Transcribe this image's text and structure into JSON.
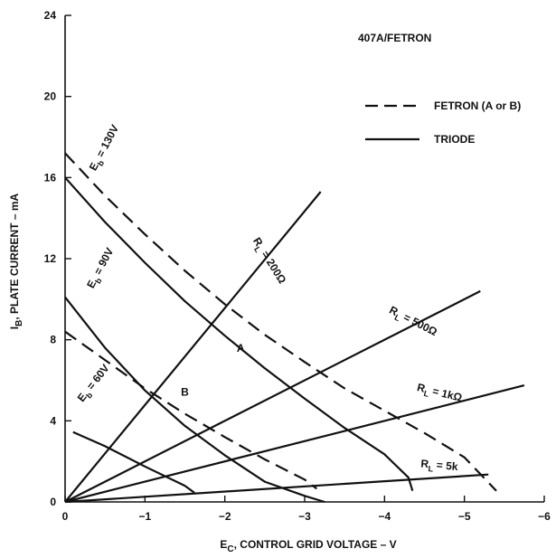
{
  "chart_data": {
    "type": "line",
    "title": "407A/FETRON",
    "xlabel_parts": {
      "main": "E",
      "sub": "C",
      "rest": ", CONTROL GRID VOLTAGE – V"
    },
    "ylabel_parts": {
      "main": "I",
      "sub": "B",
      "rest": ", PLATE CURRENT – mA"
    },
    "xlim": [
      0,
      -6
    ],
    "ylim": [
      0,
      24
    ],
    "x_ticks": [
      {
        "value": 0,
        "label": "0"
      },
      {
        "value": -1,
        "label": "−1"
      },
      {
        "value": -2,
        "label": "−2"
      },
      {
        "value": -3,
        "label": "−3"
      },
      {
        "value": -4,
        "label": "−4"
      },
      {
        "value": -5,
        "label": "−5"
      },
      {
        "value": -6,
        "label": "−6"
      }
    ],
    "y_ticks": [
      {
        "value": 0,
        "label": "0"
      },
      {
        "value": 4,
        "label": "4"
      },
      {
        "value": 8,
        "label": "8"
      },
      {
        "value": 12,
        "label": "12"
      },
      {
        "value": 16,
        "label": "16"
      },
      {
        "value": 20,
        "label": "20"
      },
      {
        "value": 24,
        "label": "24"
      }
    ],
    "grid": false,
    "legend": {
      "position": "top-right",
      "entries": [
        {
          "name": "FETRON (A or B)",
          "style": "dashed"
        },
        {
          "name": "TRIODE",
          "style": "solid"
        }
      ]
    },
    "series": [
      {
        "style": "dashed",
        "points": [
          [
            0,
            17.2
          ],
          [
            -0.5,
            15.1
          ],
          [
            -1,
            13.2
          ],
          [
            -1.5,
            11.4
          ],
          [
            -2,
            9.75
          ],
          [
            -2.5,
            8.25
          ],
          [
            -3,
            6.9
          ],
          [
            -3.5,
            5.6
          ],
          [
            -4,
            4.5
          ],
          [
            -4.5,
            3.4
          ],
          [
            -5,
            2.2
          ],
          [
            -5.4,
            0.55
          ]
        ]
      },
      {
        "style": "dashed",
        "points": [
          [
            0,
            8.4
          ],
          [
            -0.5,
            7.0
          ],
          [
            -1,
            5.6
          ],
          [
            -1.5,
            4.35
          ],
          [
            -2,
            3.2
          ],
          [
            -2.5,
            2.1
          ],
          [
            -3,
            1.1
          ],
          [
            -3.15,
            0.65
          ]
        ]
      },
      {
        "style": "solid",
        "points": [
          [
            0,
            16.0
          ],
          [
            -0.5,
            13.8
          ],
          [
            -1,
            11.8
          ],
          [
            -1.5,
            9.9
          ],
          [
            -2,
            8.2
          ],
          [
            -2.5,
            6.6
          ],
          [
            -3,
            5.1
          ],
          [
            -3.5,
            3.65
          ],
          [
            -4,
            2.35
          ],
          [
            -4.3,
            1.2
          ],
          [
            -4.35,
            0.55
          ]
        ]
      },
      {
        "style": "solid",
        "points": [
          [
            0,
            10.1
          ],
          [
            -0.5,
            7.6
          ],
          [
            -1,
            5.5
          ],
          [
            -1.5,
            3.75
          ],
          [
            -2,
            2.3
          ],
          [
            -2.5,
            1.0
          ],
          [
            -3,
            0.3
          ],
          [
            -3.25,
            0.0
          ]
        ]
      },
      {
        "style": "solid",
        "points": [
          [
            -0.1,
            3.45
          ],
          [
            -0.5,
            2.75
          ],
          [
            -1,
            1.75
          ],
          [
            -1.5,
            0.8
          ],
          [
            -1.62,
            0.45
          ]
        ]
      },
      {
        "style": "solid",
        "points": [
          [
            0,
            0
          ],
          [
            -3.2,
            15.3
          ]
        ]
      },
      {
        "style": "solid",
        "points": [
          [
            0,
            0
          ],
          [
            -5.2,
            10.4
          ]
        ]
      },
      {
        "style": "solid",
        "points": [
          [
            0,
            0
          ],
          [
            -5.75,
            5.75
          ]
        ]
      },
      {
        "style": "solid",
        "points": [
          [
            0,
            0
          ],
          [
            -5.3,
            1.35
          ]
        ]
      }
    ],
    "annotations": [
      {
        "text": "A",
        "x": -2.15,
        "y": 7.4,
        "rotate": 0
      },
      {
        "text": "B",
        "x": -1.45,
        "y": 5.25,
        "rotate": 0
      },
      {
        "parts": [
          "E",
          "b",
          " = 130V"
        ],
        "x": -0.38,
        "y": 16.3,
        "rotate": 62
      },
      {
        "parts": [
          "E",
          "b",
          " = 90V"
        ],
        "x": -0.35,
        "y": 10.5,
        "rotate": 62
      },
      {
        "parts": [
          "E",
          "b",
          " = 60V"
        ],
        "x": -0.22,
        "y": 4.9,
        "rotate": 52
      },
      {
        "parts": [
          "R",
          "L",
          " = 200Ω"
        ],
        "x": -2.35,
        "y": 12.9,
        "rotate": -58
      },
      {
        "parts": [
          "R",
          "L",
          " = 500Ω"
        ],
        "x": -4.05,
        "y": 9.35,
        "rotate": -27
      },
      {
        "parts": [
          "R",
          "L",
          " = 1kΩ"
        ],
        "x": -4.4,
        "y": 5.5,
        "rotate": -14
      },
      {
        "parts": [
          "R",
          "L",
          " = 5k"
        ],
        "x": -4.45,
        "y": 1.72,
        "rotate": -5
      }
    ]
  }
}
